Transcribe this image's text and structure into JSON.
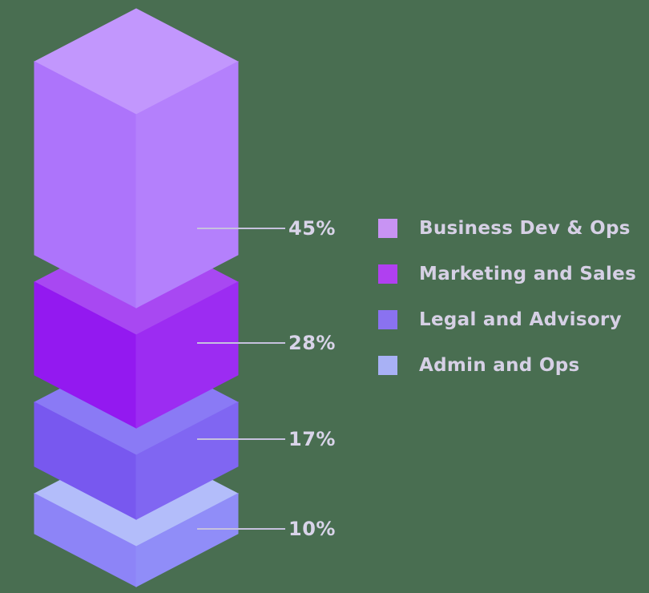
{
  "chart_data": {
    "type": "bar",
    "variant": "isometric-stacked-3d",
    "title": "",
    "unit": "%",
    "legend_position": "right",
    "background": "#496e51",
    "connector_line_color": "#c6c1de",
    "percent_text_color": "#d9d4e9",
    "legend_text_color": "#d6d0e5",
    "categories": [
      "Business Dev & Ops",
      "Marketing and Sales",
      "Legal and Advisory",
      "Admin and Ops"
    ],
    "values": [
      45,
      28,
      17,
      10
    ],
    "segments": [
      {
        "label": "Business Dev & Ops",
        "value": 45,
        "percent_label": "45%",
        "color": "#c893f3",
        "faces": {
          "top": "#c297fd",
          "left": "#ad74fb",
          "right": "#b480fc"
        }
      },
      {
        "label": "Marketing and Sales",
        "value": 28,
        "percent_label": "28%",
        "color": "#b040f0",
        "faces": {
          "top": "#a848f2",
          "left": "#9319f0",
          "right": "#9c2cf2"
        }
      },
      {
        "label": "Legal and Advisory",
        "value": 17,
        "percent_label": "17%",
        "color": "#8a72f0",
        "faces": {
          "top": "#8a7af5",
          "left": "#7858ef",
          "right": "#8066f2"
        }
      },
      {
        "label": "Admin and Ops",
        "value": 10,
        "percent_label": "10%",
        "color": "#a8b1f5",
        "faces": {
          "top": "#b3bdfa",
          "left": "#8d84f7",
          "right": "#908df8"
        }
      }
    ]
  }
}
